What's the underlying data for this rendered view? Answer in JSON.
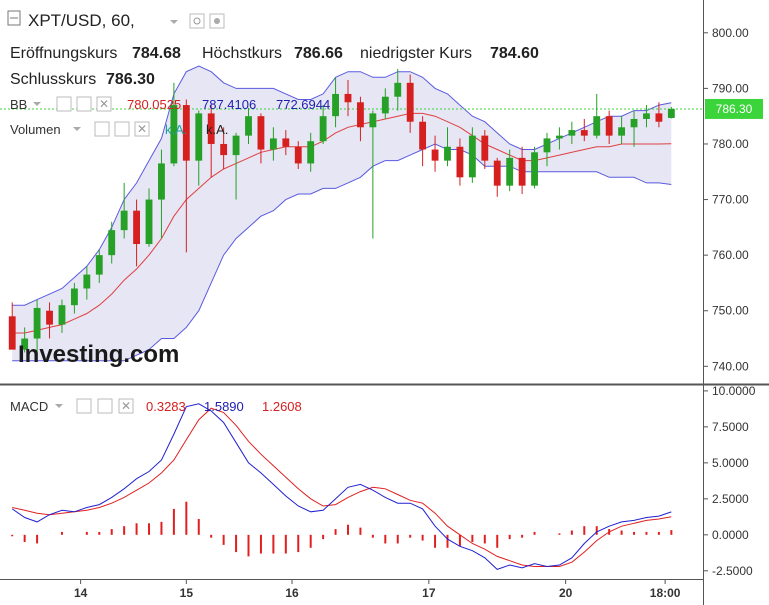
{
  "header": {
    "symbol": "XPT/USD, 60,",
    "open_label": "Eröffnungskurs",
    "open_value": "784.68",
    "high_label": "Höchstkurs",
    "high_value": "786.66",
    "low_label": "niedrigster Kurs",
    "low_value": "784.60",
    "close_label": "Schlusskurs",
    "close_value": "786.30"
  },
  "indicators": {
    "bb_label": "BB",
    "bb_values": [
      "780.0525",
      "787.4106",
      "772.6944"
    ],
    "volume_label": "Volumen",
    "volume_values": [
      "k.A.",
      "k.A."
    ],
    "macd_label": "MACD",
    "macd_values": [
      "0.3283",
      "1.5890",
      "1.2608"
    ]
  },
  "price_tag": "786.30",
  "logo": "Investing.com",
  "colors": {
    "up": "#26a026",
    "down": "#d62020",
    "bb_band": "#5a5ae0",
    "bb_fill": "#e6e6f4",
    "bb_mid": "#e04040",
    "price_tag_bg": "#3bd43b",
    "macd_line": "#2020d0",
    "signal_line": "#e02020",
    "hist": "#e02020"
  },
  "chart_data": [
    {
      "type": "candlestick",
      "title": "XPT/USD, 60",
      "y_ticks": [
        "740.00",
        "750.00",
        "760.00",
        "770.00",
        "780.00",
        "790.00",
        "800.00"
      ],
      "ylim": [
        737,
        805
      ],
      "x_ticks": [
        "14",
        "15",
        "16",
        "17",
        "20",
        "18:00"
      ],
      "x_tick_positions": [
        6,
        14.5,
        23,
        34,
        45,
        53
      ],
      "xlim": [
        0,
        55
      ],
      "current_price": 786.3,
      "candles": [
        [
          749.0,
          751.5,
          743.5,
          743.0
        ],
        [
          743.0,
          747.0,
          742.5,
          745.0
        ],
        [
          745.0,
          752.0,
          741.0,
          750.5
        ],
        [
          750.0,
          751.5,
          745.0,
          747.5
        ],
        [
          747.5,
          752.0,
          746.0,
          751.0
        ],
        [
          751.0,
          755.0,
          749.5,
          754.0
        ],
        [
          754.0,
          758.0,
          752.0,
          756.5
        ],
        [
          756.5,
          761.0,
          755.0,
          760.0
        ],
        [
          760.0,
          766.0,
          758.5,
          764.5
        ],
        [
          764.5,
          773.0,
          763.0,
          768.0
        ],
        [
          768.0,
          770.0,
          758.0,
          762.0
        ],
        [
          762.0,
          772.0,
          761.5,
          770.0
        ],
        [
          770.0,
          779.0,
          763.0,
          776.5
        ],
        [
          776.5,
          791.0,
          776.0,
          787.0
        ],
        [
          787.0,
          788.0,
          760.5,
          777.0
        ],
        [
          777.0,
          786.0,
          772.5,
          785.5
        ],
        [
          785.5,
          787.0,
          774.0,
          780.0
        ],
        [
          780.0,
          783.0,
          775.5,
          778.0
        ],
        [
          778.0,
          782.0,
          770.0,
          781.5
        ],
        [
          781.5,
          786.5,
          780.0,
          785.0
        ],
        [
          785.0,
          785.5,
          776.5,
          779.0
        ],
        [
          779.0,
          783.0,
          777.0,
          781.0
        ],
        [
          781.0,
          782.5,
          778.0,
          779.5
        ],
        [
          779.5,
          780.5,
          775.5,
          776.5
        ],
        [
          776.5,
          782.0,
          775.0,
          780.5
        ],
        [
          780.5,
          787.0,
          780.0,
          785.0
        ],
        [
          785.0,
          792.0,
          783.0,
          789.0
        ],
        [
          789.0,
          791.5,
          785.0,
          787.5
        ],
        [
          787.5,
          788.5,
          780.5,
          783.0
        ],
        [
          783.0,
          786.0,
          763.0,
          785.5
        ],
        [
          785.5,
          790.0,
          784.5,
          788.5
        ],
        [
          788.5,
          793.5,
          786.0,
          791.0
        ],
        [
          791.0,
          792.5,
          782.0,
          784.0
        ],
        [
          784.0,
          785.0,
          776.0,
          779.0
        ],
        [
          779.0,
          781.5,
          775.0,
          777.0
        ],
        [
          777.0,
          783.0,
          776.0,
          779.5
        ],
        [
          779.5,
          781.0,
          772.5,
          774.0
        ],
        [
          774.0,
          783.0,
          773.0,
          781.5
        ],
        [
          781.5,
          782.5,
          775.5,
          777.0
        ],
        [
          777.0,
          777.5,
          770.5,
          772.5
        ],
        [
          772.5,
          779.0,
          771.5,
          777.5
        ],
        [
          777.5,
          779.5,
          771.0,
          772.5
        ],
        [
          772.5,
          779.5,
          772.0,
          778.5
        ],
        [
          778.5,
          782.0,
          776.0,
          781.0
        ],
        [
          781.0,
          783.0,
          779.0,
          781.5
        ],
        [
          781.5,
          784.0,
          780.0,
          782.5
        ],
        [
          782.5,
          784.5,
          780.5,
          781.5
        ],
        [
          781.5,
          789.0,
          781.0,
          785.0
        ],
        [
          785.0,
          786.0,
          780.0,
          781.5
        ],
        [
          781.5,
          785.0,
          780.0,
          783.0
        ],
        [
          783.0,
          786.0,
          779.5,
          784.5
        ],
        [
          784.5,
          787.0,
          783.0,
          785.5
        ],
        [
          785.5,
          787.5,
          783.0,
          784.0
        ],
        [
          784.68,
          786.66,
          784.6,
          786.3
        ]
      ],
      "bb_upper": [
        751,
        751,
        752,
        753,
        754,
        756,
        758,
        761,
        765,
        770,
        773,
        777,
        781,
        789,
        793,
        794,
        793,
        791,
        790,
        790,
        790,
        790,
        789,
        788,
        788,
        789,
        792,
        793,
        793,
        792,
        792,
        793,
        793,
        792,
        790,
        789,
        787,
        785,
        784,
        782,
        780,
        779,
        779,
        780,
        781,
        782,
        783,
        784,
        785,
        785,
        786,
        786,
        787,
        787.4
      ],
      "bb_mid": [
        746,
        746,
        746.5,
        747,
        747.5,
        748.5,
        749.5,
        751,
        753,
        755.5,
        757.5,
        760,
        763,
        767,
        770,
        772,
        774,
        775.5,
        776.5,
        777.5,
        778.5,
        779,
        779.5,
        779.5,
        779.5,
        780.5,
        782,
        783,
        783.5,
        784,
        784.5,
        785,
        785.5,
        785.5,
        785,
        784,
        783,
        781.5,
        780,
        779,
        778,
        777,
        777,
        777.5,
        778,
        778.5,
        779,
        779.5,
        779.5,
        780,
        780,
        780,
        780,
        780.05
      ],
      "bb_lower": [
        741,
        741,
        741,
        741,
        741,
        741,
        741,
        741,
        741,
        741,
        742,
        743,
        745,
        745,
        747,
        750,
        755,
        760,
        763,
        765,
        767,
        768,
        770,
        771,
        771,
        772,
        772,
        773,
        774,
        776,
        777,
        777,
        778,
        779,
        780,
        779,
        779,
        778,
        776,
        776,
        776,
        775,
        775,
        775,
        775,
        775,
        775,
        775,
        774,
        774,
        774,
        773,
        773,
        772.7
      ],
      "macd_pane": {
        "ylim": [
          -3,
          10.2
        ],
        "y_ticks": [
          "10.0000",
          "7.5000",
          "5.0000",
          "2.5000",
          "0.0000",
          "-2.5000"
        ],
        "macd": [
          1.8,
          1.2,
          0.9,
          1.4,
          1.7,
          1.6,
          1.9,
          2.1,
          2.6,
          3.2,
          3.9,
          4.4,
          5.2,
          7.0,
          8.9,
          9.1,
          8.6,
          7.8,
          6.4,
          5.0,
          4.3,
          3.5,
          2.7,
          2.0,
          1.6,
          1.7,
          2.5,
          3.3,
          3.5,
          3.1,
          2.6,
          2.2,
          2.2,
          1.8,
          0.6,
          -0.3,
          -0.8,
          -1.1,
          -1.6,
          -2.4,
          -2.1,
          -2.3,
          -2.0,
          -2.2,
          -2.1,
          -1.6,
          -0.6,
          0.2,
          0.6,
          0.9,
          1.0,
          1.2,
          1.3,
          1.589
        ],
        "signal": [
          1.9,
          1.7,
          1.5,
          1.4,
          1.5,
          1.6,
          1.7,
          1.9,
          2.2,
          2.6,
          3.1,
          3.6,
          4.3,
          5.2,
          6.6,
          8.0,
          8.8,
          8.5,
          7.6,
          6.5,
          5.6,
          4.8,
          4.0,
          3.2,
          2.5,
          2.0,
          2.1,
          2.6,
          3.0,
          3.3,
          3.2,
          2.8,
          2.4,
          2.2,
          1.5,
          0.6,
          0.0,
          -0.6,
          -1.0,
          -1.5,
          -1.8,
          -2.1,
          -2.2,
          -2.2,
          -2.2,
          -1.9,
          -1.2,
          -0.4,
          0.2,
          0.6,
          0.8,
          1.0,
          1.1,
          1.261
        ],
        "histogram": [
          -0.1,
          -0.5,
          -0.6,
          0.0,
          0.2,
          0.0,
          0.2,
          0.2,
          0.4,
          0.6,
          0.8,
          0.8,
          0.9,
          1.8,
          2.3,
          1.1,
          -0.2,
          -0.7,
          -1.2,
          -1.5,
          -1.3,
          -1.3,
          -1.3,
          -1.2,
          -0.9,
          -0.3,
          0.4,
          0.7,
          0.5,
          -0.2,
          -0.6,
          -0.6,
          -0.2,
          -0.4,
          -0.9,
          -0.9,
          -0.8,
          -0.5,
          -0.6,
          -0.9,
          -0.3,
          -0.2,
          0.2,
          0.0,
          0.1,
          0.3,
          0.6,
          0.6,
          0.4,
          0.3,
          0.2,
          0.2,
          0.2,
          0.328
        ]
      }
    }
  ]
}
